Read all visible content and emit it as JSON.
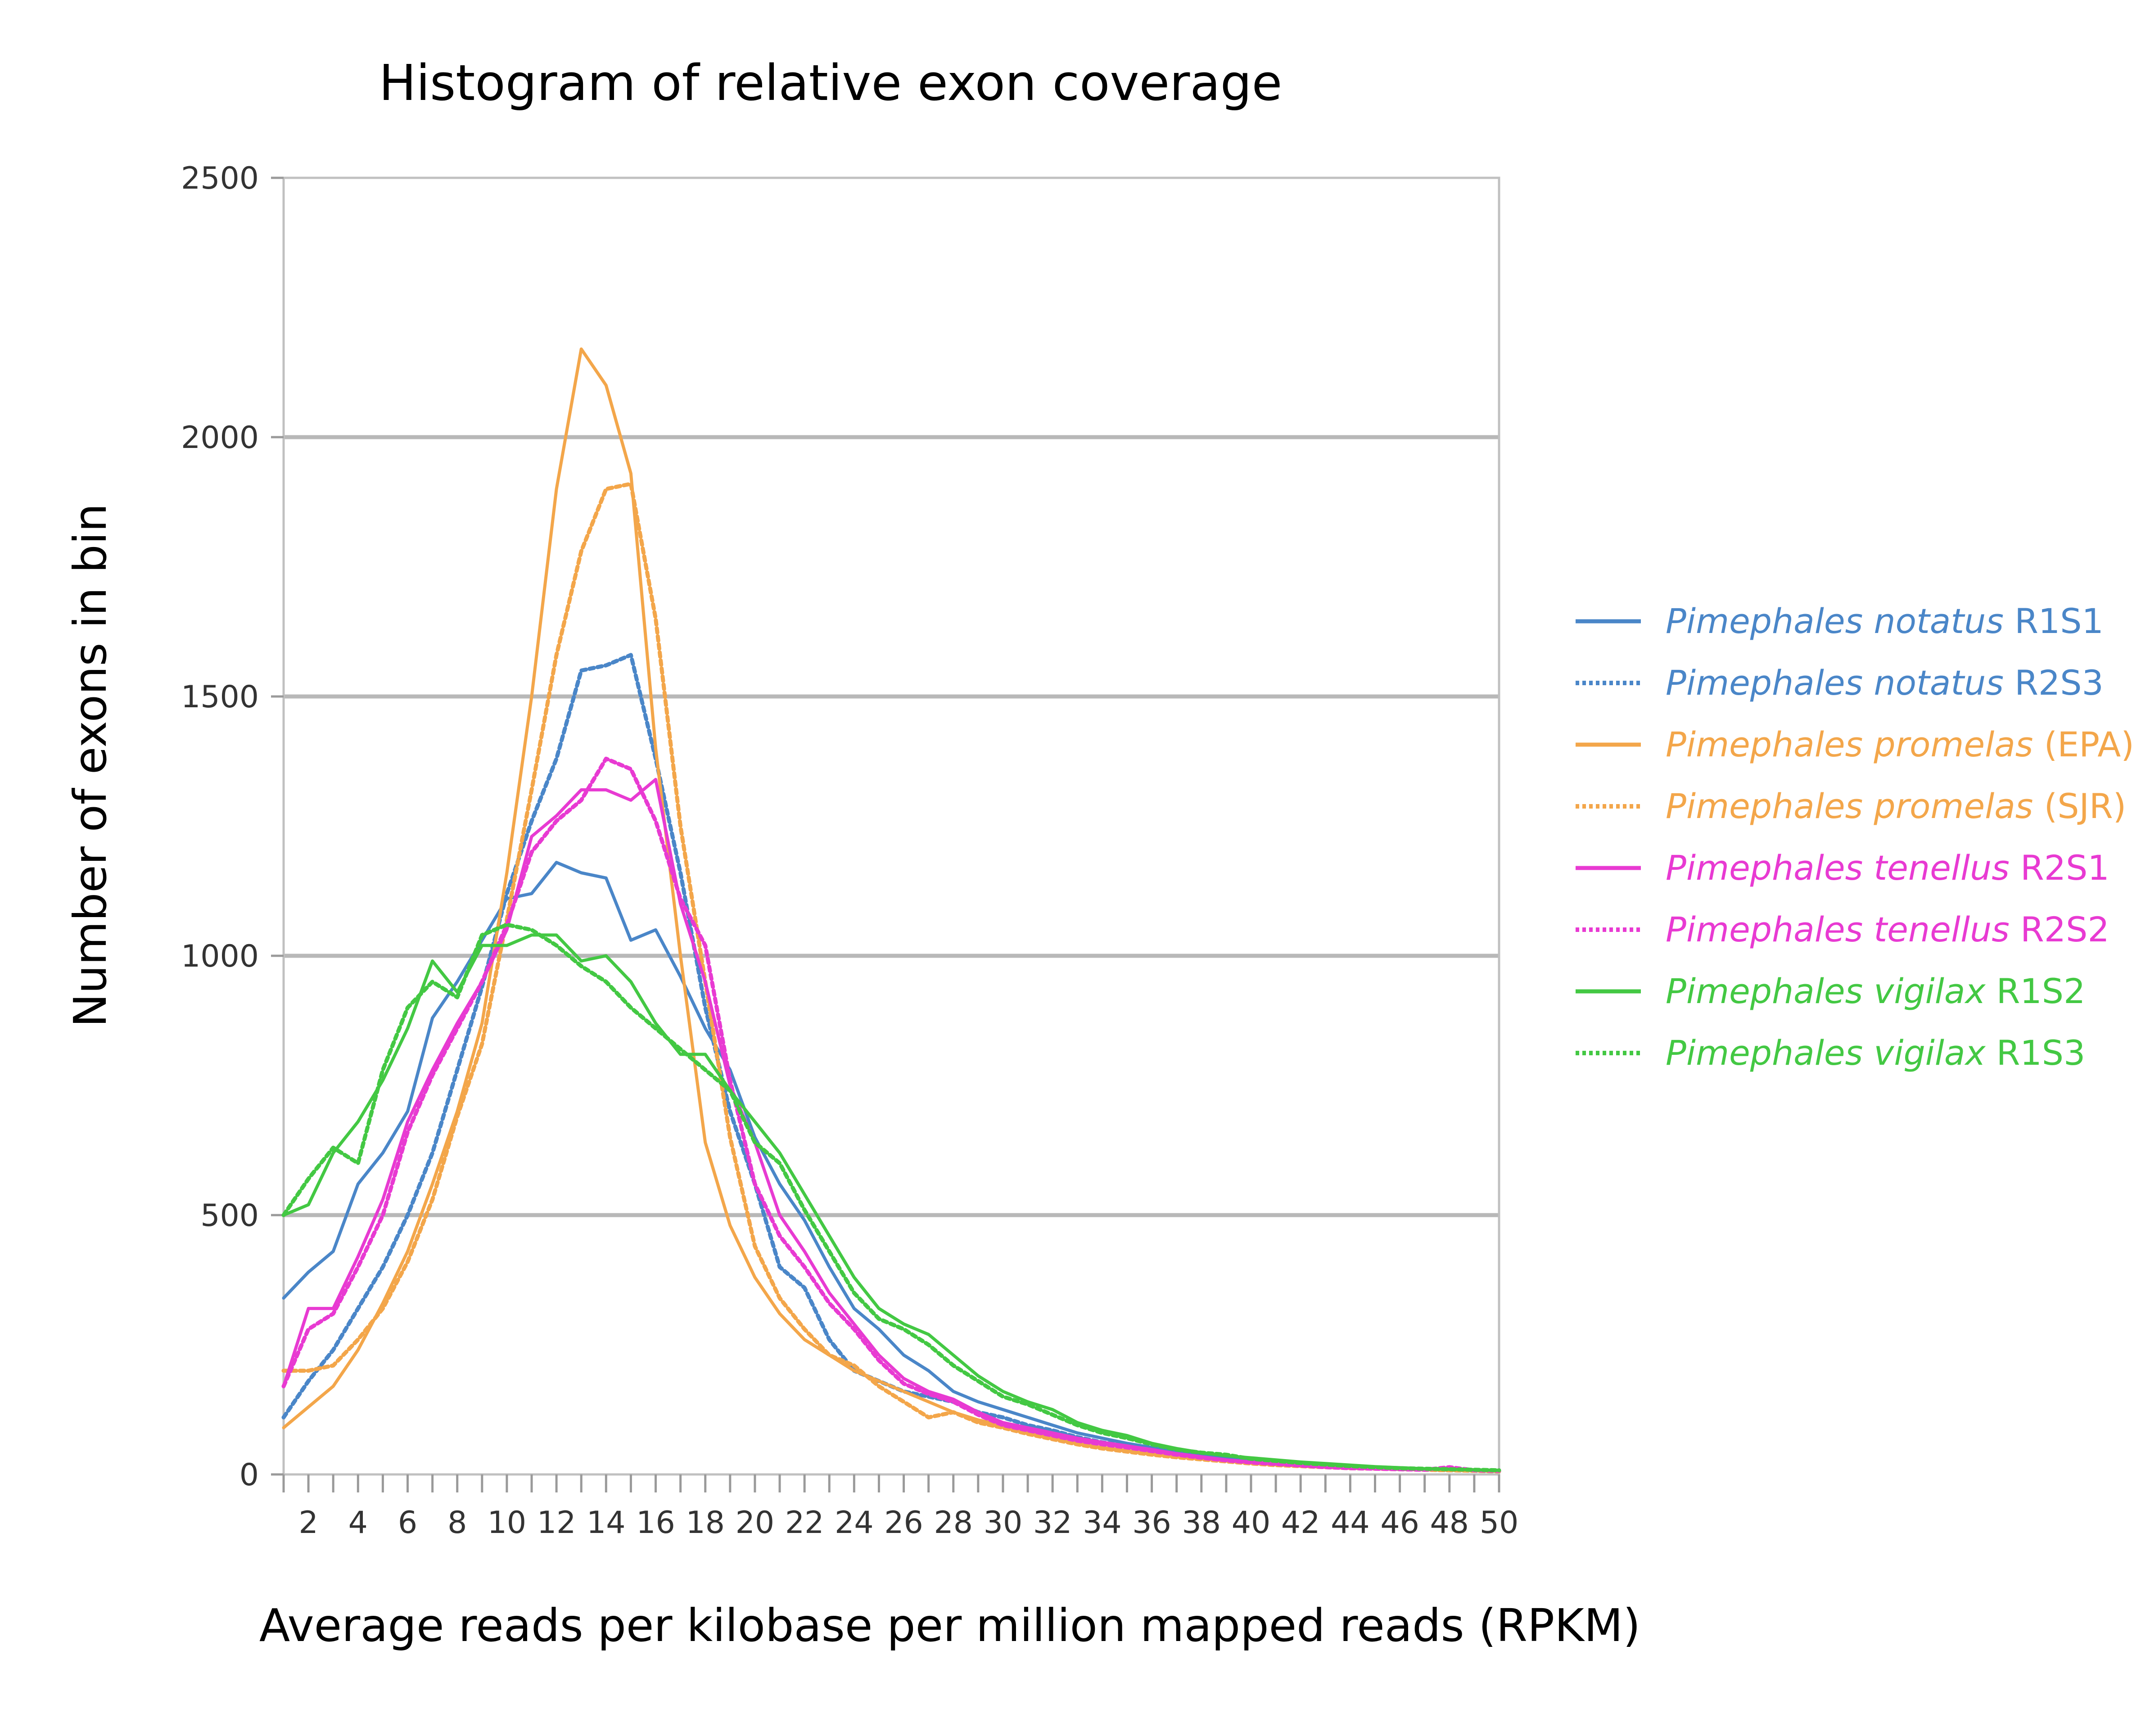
{
  "chart_data": {
    "type": "line",
    "title": "Histogram of relative exon coverage",
    "xlabel": "Average reads per kilobase per million mapped reads (RPKM)",
    "ylabel": "Number of exons in bin",
    "xlim": [
      1,
      50
    ],
    "ylim": [
      0,
      2500
    ],
    "x_ticks": [
      2,
      4,
      6,
      8,
      10,
      12,
      14,
      16,
      18,
      20,
      22,
      24,
      26,
      28,
      30,
      32,
      34,
      36,
      38,
      40,
      42,
      44,
      46,
      48,
      50
    ],
    "y_ticks": [
      0,
      500,
      1000,
      1500,
      2000,
      2500
    ],
    "grid": true,
    "legend_position": "right",
    "x": [
      1,
      2,
      3,
      4,
      5,
      6,
      7,
      8,
      9,
      10,
      11,
      12,
      13,
      14,
      15,
      16,
      17,
      18,
      19,
      20,
      21,
      22,
      23,
      24,
      25,
      26,
      27,
      28,
      29,
      30,
      31,
      32,
      33,
      34,
      35,
      36,
      37,
      38,
      39,
      40,
      41,
      42,
      43,
      44,
      45,
      46,
      47,
      48,
      49,
      50
    ],
    "series": [
      {
        "species": "Pimephales notatus",
        "suffix": "R1S1",
        "style": "solid",
        "color": "#4a86c8",
        "values": [
          340,
          390,
          430,
          560,
          620,
          700,
          880,
          950,
          1030,
          1110,
          1120,
          1180,
          1160,
          1150,
          1030,
          1050,
          960,
          860,
          780,
          650,
          560,
          490,
          400,
          320,
          280,
          230,
          200,
          160,
          140,
          125,
          110,
          95,
          80,
          70,
          60,
          52,
          45,
          38,
          32,
          27,
          24,
          21,
          18,
          15,
          13,
          11,
          10,
          9,
          8,
          7
        ]
      },
      {
        "species": "Pimephales notatus",
        "suffix": "R2S3",
        "style": "dotted",
        "color": "#4a86c8",
        "values": [
          110,
          180,
          240,
          320,
          400,
          500,
          620,
          780,
          940,
          1120,
          1260,
          1380,
          1550,
          1560,
          1580,
          1380,
          1160,
          900,
          700,
          560,
          400,
          360,
          260,
          200,
          180,
          160,
          150,
          140,
          120,
          110,
          95,
          85,
          72,
          62,
          55,
          48,
          42,
          36,
          30,
          26,
          22,
          19,
          16,
          14,
          12,
          10,
          9,
          8,
          7,
          6
        ]
      },
      {
        "species": "Pimephales promelas",
        "suffix": "(EPA)",
        "style": "solid",
        "color": "#f3a64a",
        "values": [
          90,
          130,
          170,
          240,
          330,
          430,
          560,
          700,
          870,
          1160,
          1500,
          1900,
          2170,
          2100,
          1930,
          1400,
          1000,
          640,
          480,
          380,
          310,
          260,
          230,
          200,
          180,
          160,
          140,
          120,
          105,
          95,
          80,
          70,
          60,
          52,
          46,
          40,
          35,
          30,
          26,
          22,
          19,
          16,
          14,
          12,
          11,
          10,
          9,
          8,
          7,
          6
        ]
      },
      {
        "species": "Pimephales promelas",
        "suffix": "(SJR)",
        "style": "dotted",
        "color": "#f3a64a",
        "values": [
          200,
          200,
          210,
          260,
          320,
          410,
          530,
          690,
          830,
          1070,
          1320,
          1580,
          1780,
          1900,
          1910,
          1650,
          1250,
          950,
          650,
          440,
          340,
          280,
          230,
          210,
          170,
          140,
          110,
          120,
          100,
          90,
          78,
          68,
          58,
          50,
          44,
          38,
          33,
          29,
          25,
          21,
          18,
          16,
          14,
          12,
          11,
          10,
          9,
          8,
          7,
          6
        ]
      },
      {
        "species": "Pimephales tenellus",
        "suffix": "R2S1",
        "style": "solid",
        "color": "#e83ad2",
        "values": [
          170,
          320,
          320,
          420,
          530,
          680,
          780,
          870,
          950,
          1050,
          1230,
          1270,
          1320,
          1320,
          1300,
          1340,
          1100,
          950,
          750,
          640,
          500,
          430,
          350,
          290,
          230,
          185,
          160,
          145,
          120,
          100,
          90,
          80,
          70,
          62,
          55,
          48,
          40,
          34,
          28,
          24,
          21,
          18,
          15,
          13,
          11,
          10,
          9,
          12,
          8,
          7
        ]
      },
      {
        "species": "Pimephales tenellus",
        "suffix": "R2S2",
        "style": "dotted",
        "color": "#e83ad2",
        "values": [
          170,
          280,
          310,
          400,
          500,
          660,
          770,
          860,
          950,
          1060,
          1200,
          1260,
          1300,
          1380,
          1360,
          1260,
          1110,
          1020,
          760,
          560,
          460,
          400,
          330,
          280,
          220,
          175,
          155,
          140,
          115,
          95,
          85,
          75,
          65,
          58,
          52,
          45,
          38,
          32,
          27,
          23,
          20,
          17,
          14,
          12,
          11,
          10,
          9,
          14,
          8,
          7
        ]
      },
      {
        "species": "Pimephales vigilax",
        "suffix": "R1S2",
        "style": "solid",
        "color": "#43c843",
        "values": [
          500,
          520,
          620,
          680,
          760,
          860,
          990,
          930,
          1020,
          1020,
          1040,
          1040,
          990,
          1000,
          950,
          870,
          810,
          810,
          740,
          680,
          620,
          540,
          460,
          380,
          320,
          290,
          270,
          230,
          190,
          160,
          140,
          125,
          100,
          85,
          75,
          60,
          50,
          42,
          36,
          32,
          28,
          24,
          21,
          18,
          15,
          13,
          11,
          10,
          9,
          8
        ]
      },
      {
        "species": "Pimephales vigilax",
        "suffix": "R1S3",
        "style": "dotted",
        "color": "#43c843",
        "values": [
          500,
          570,
          630,
          600,
          780,
          900,
          950,
          920,
          1040,
          1060,
          1050,
          1020,
          980,
          950,
          900,
          860,
          820,
          780,
          740,
          640,
          600,
          510,
          430,
          350,
          300,
          280,
          250,
          210,
          180,
          150,
          135,
          115,
          95,
          80,
          70,
          58,
          48,
          42,
          38,
          30,
          26,
          22,
          19,
          16,
          14,
          12,
          11,
          10,
          9,
          8
        ]
      }
    ]
  }
}
